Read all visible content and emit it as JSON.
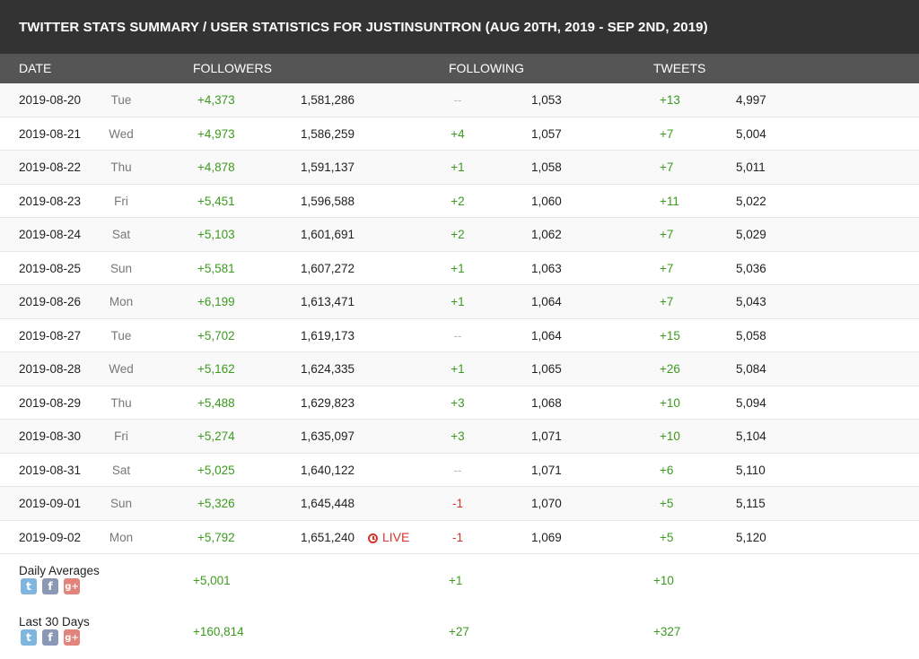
{
  "title": "TWITTER STATS SUMMARY / USER STATISTICS FOR JUSTINSUNTRON (AUG 20TH, 2019 - SEP 2ND, 2019)",
  "headers": {
    "date": "DATE",
    "followers": "FOLLOWERS",
    "following": "FOLLOWING",
    "tweets": "TWEETS"
  },
  "rows": [
    {
      "date": "2019-08-20",
      "dow": "Tue",
      "fchg": "+4,373",
      "ftot": "1,581,286",
      "gchg": "--",
      "gtot": "1,053",
      "tchg": "+13",
      "ttot": "4,997"
    },
    {
      "date": "2019-08-21",
      "dow": "Wed",
      "fchg": "+4,973",
      "ftot": "1,586,259",
      "gchg": "+4",
      "gtot": "1,057",
      "tchg": "+7",
      "ttot": "5,004"
    },
    {
      "date": "2019-08-22",
      "dow": "Thu",
      "fchg": "+4,878",
      "ftot": "1,591,137",
      "gchg": "+1",
      "gtot": "1,058",
      "tchg": "+7",
      "ttot": "5,011"
    },
    {
      "date": "2019-08-23",
      "dow": "Fri",
      "fchg": "+5,451",
      "ftot": "1,596,588",
      "gchg": "+2",
      "gtot": "1,060",
      "tchg": "+11",
      "ttot": "5,022"
    },
    {
      "date": "2019-08-24",
      "dow": "Sat",
      "fchg": "+5,103",
      "ftot": "1,601,691",
      "gchg": "+2",
      "gtot": "1,062",
      "tchg": "+7",
      "ttot": "5,029"
    },
    {
      "date": "2019-08-25",
      "dow": "Sun",
      "fchg": "+5,581",
      "ftot": "1,607,272",
      "gchg": "+1",
      "gtot": "1,063",
      "tchg": "+7",
      "ttot": "5,036"
    },
    {
      "date": "2019-08-26",
      "dow": "Mon",
      "fchg": "+6,199",
      "ftot": "1,613,471",
      "gchg": "+1",
      "gtot": "1,064",
      "tchg": "+7",
      "ttot": "5,043"
    },
    {
      "date": "2019-08-27",
      "dow": "Tue",
      "fchg": "+5,702",
      "ftot": "1,619,173",
      "gchg": "--",
      "gtot": "1,064",
      "tchg": "+15",
      "ttot": "5,058"
    },
    {
      "date": "2019-08-28",
      "dow": "Wed",
      "fchg": "+5,162",
      "ftot": "1,624,335",
      "gchg": "+1",
      "gtot": "1,065",
      "tchg": "+26",
      "ttot": "5,084"
    },
    {
      "date": "2019-08-29",
      "dow": "Thu",
      "fchg": "+5,488",
      "ftot": "1,629,823",
      "gchg": "+3",
      "gtot": "1,068",
      "tchg": "+10",
      "ttot": "5,094"
    },
    {
      "date": "2019-08-30",
      "dow": "Fri",
      "fchg": "+5,274",
      "ftot": "1,635,097",
      "gchg": "+3",
      "gtot": "1,071",
      "tchg": "+10",
      "ttot": "5,104"
    },
    {
      "date": "2019-08-31",
      "dow": "Sat",
      "fchg": "+5,025",
      "ftot": "1,640,122",
      "gchg": "--",
      "gtot": "1,071",
      "tchg": "+6",
      "ttot": "5,110"
    },
    {
      "date": "2019-09-01",
      "dow": "Sun",
      "fchg": "+5,326",
      "ftot": "1,645,448",
      "gchg": "-1",
      "gtot": "1,070",
      "tchg": "+5",
      "ttot": "5,115"
    },
    {
      "date": "2019-09-02",
      "dow": "Mon",
      "fchg": "+5,792",
      "ftot": "1,651,240",
      "live": "LIVE",
      "gchg": "-1",
      "gtot": "1,069",
      "tchg": "+5",
      "ttot": "5,120"
    }
  ],
  "summaries": [
    {
      "label": "Daily Averages",
      "followers": "+5,001",
      "following": "+1",
      "tweets": "+10"
    },
    {
      "label": "Last 30 Days",
      "followers": "+160,814",
      "following": "+27",
      "tweets": "+327"
    }
  ],
  "share_icons": [
    {
      "name": "twitter-share-icon",
      "glyph": "t"
    },
    {
      "name": "facebook-share-icon",
      "glyph": "f"
    },
    {
      "name": "googleplus-share-icon",
      "glyph": "g+"
    }
  ],
  "colors": {
    "positive": "#3c9a1e",
    "negative": "#d9342b",
    "neutral": "#bbbbbb",
    "header": "#333333",
    "subheader": "#555555"
  }
}
